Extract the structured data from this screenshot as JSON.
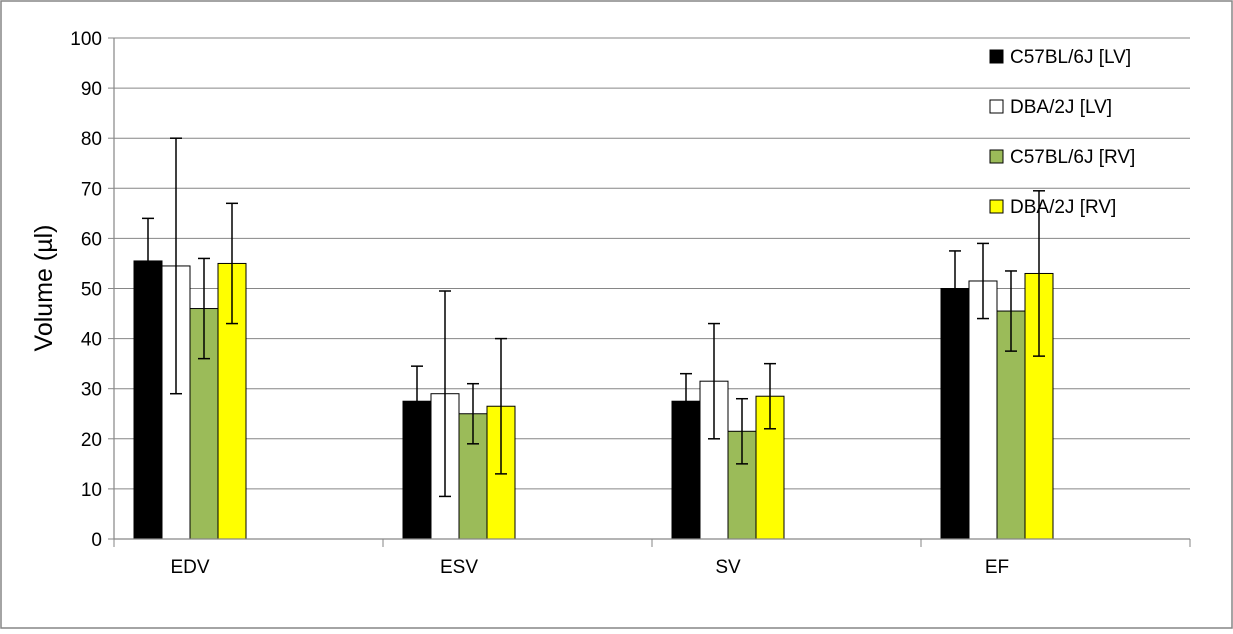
{
  "chart_data": {
    "type": "bar",
    "title": "",
    "xlabel": "",
    "ylabel": "Volume (µl)",
    "ylim": [
      0,
      100
    ],
    "yticks": [
      0,
      10,
      20,
      30,
      40,
      50,
      60,
      70,
      80,
      90,
      100
    ],
    "grid": true,
    "legend_position": "top-right",
    "categories": [
      "EDV",
      "ESV",
      "SV",
      "EF"
    ],
    "series": [
      {
        "name": "C57BL/6J [LV]",
        "color": "#000000",
        "values": [
          55.5,
          27.5,
          27.5,
          50
        ],
        "errors": [
          8.5,
          7,
          5.5,
          7.5
        ]
      },
      {
        "name": "DBA/2J [LV]",
        "color": "#ffffff",
        "values": [
          54.5,
          29,
          31.5,
          51.5
        ],
        "errors": [
          25.5,
          20.5,
          11.5,
          7.5
        ]
      },
      {
        "name": "C57BL/6J [RV]",
        "color": "#9bbb59",
        "values": [
          46,
          25,
          21.5,
          45.5
        ],
        "errors": [
          10,
          6,
          6.5,
          8
        ]
      },
      {
        "name": "DBA/2J [RV]",
        "color": "#ffff00",
        "values": [
          55,
          26.5,
          28.5,
          53
        ],
        "errors": [
          12,
          13.5,
          6.5,
          16.5
        ]
      }
    ]
  }
}
